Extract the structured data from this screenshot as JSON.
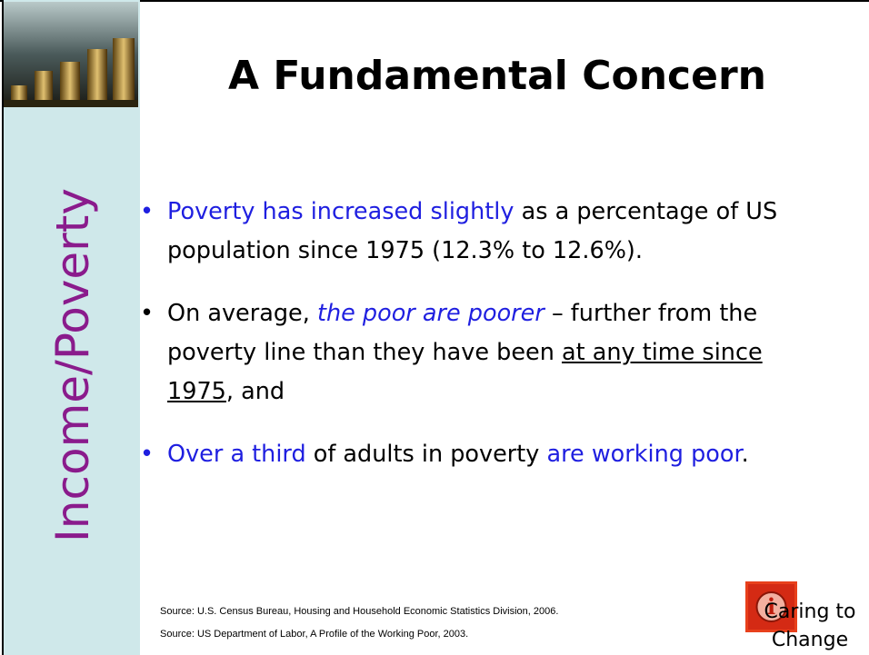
{
  "sidebar": {
    "label": "Income/Poverty"
  },
  "title": "A Fundamental Concern",
  "bullets": [
    [
      "Poverty has increased slightly",
      " as a percentage of US population since 1975 (12.3% to 12.6%)."
    ],
    [
      "On average, ",
      "the poor are poorer",
      " – further from the poverty line than they have been ",
      "at any time since 1975",
      ", and"
    ],
    [
      "Over a third",
      " of adults in poverty ",
      "are working poor",
      "."
    ]
  ],
  "sources": [
    "Source: U.S. Census Bureau, Housing and Household Economic Statistics Division, 2006.",
    "Source: US Department of Labor, A Profile of the Working Poor, 2003."
  ],
  "logo": {
    "icon": "i",
    "caption": [
      "Caring to",
      "Change"
    ]
  }
}
